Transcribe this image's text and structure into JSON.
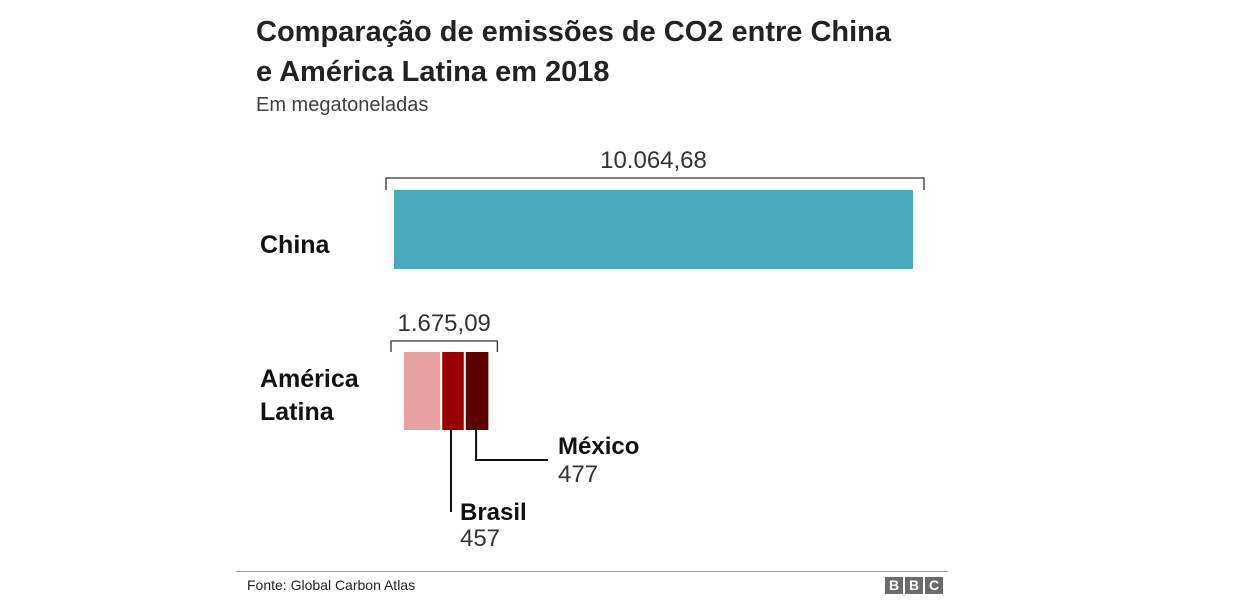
{
  "chart_data": {
    "type": "bar",
    "title": "Comparação de emissões de CO2 entre China e América Latina em 2018",
    "subtitle": "Em megatoneladas",
    "categories": [
      "China",
      "América Latina"
    ],
    "totals": [
      "10.064,68",
      "1.675,09"
    ],
    "values": [
      10064.68,
      1675.09
    ],
    "stacked_segments": {
      "América Latina": [
        {
          "name": "",
          "value": 741.09,
          "color": "#e6a1a1"
        },
        {
          "name": "Brasil",
          "value": 457,
          "label": "457",
          "color": "#990000"
        },
        {
          "name": "México",
          "value": 477,
          "label": "477",
          "color": "#5c0000"
        }
      ]
    },
    "colors": {
      "China": "#4ba8bd"
    },
    "source": "Fonte: Global Carbon Atlas",
    "logo": "BBC"
  }
}
